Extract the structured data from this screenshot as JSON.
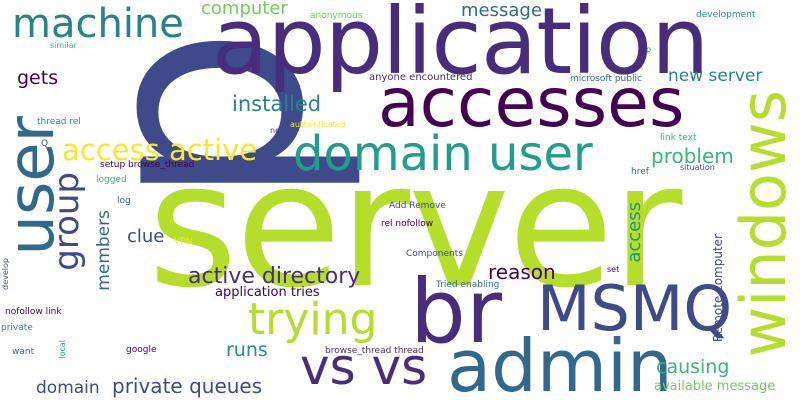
{
  "words": {
    "server": "server",
    "p": "p",
    "application": "application",
    "accesses": "accesses",
    "user": "user",
    "windows": "windows",
    "br": "br",
    "msmq": "MSMQ",
    "admin": "admin",
    "vs_vs": "vs vs",
    "domain_user": "domain user",
    "machine": "machine",
    "trying": "trying",
    "group": "group",
    "access_active": "access active",
    "active_directory": "active directory",
    "private_queues": "private queues",
    "installed": "installed",
    "problem": "problem",
    "new_server": "new server",
    "reason": "reason",
    "computer": "computer",
    "message": "message",
    "gets": "gets",
    "clue": "clue",
    "members": "members",
    "runs": "runs",
    "causing": "causing",
    "access": "access",
    "domain": "domain",
    "available_message": "available message",
    "application_tries": "application tries",
    "remote_computer": "Remote computer",
    "anyone_encountered": "anyone encountered",
    "microsoft_public": "microsoft public",
    "anonymous": "anonymous",
    "development": "development",
    "similar": "similar",
    "p_small": "p",
    "thread_rel": "thread rel",
    "need": "need",
    "authenticated": "authenticated",
    "link_text": "link text",
    "q": "Q",
    "setup_browse_thread": "setup browse_thread",
    "situation": "situation",
    "href": "href",
    "logged": "logged",
    "log": "log",
    "add_remove": "Add Remove",
    "rel_nofollow": "rel nofollow",
    "vpn": "VPN",
    "components": "Components",
    "develop": "develop",
    "tried_enabling": "Tried enabling",
    "set": "set",
    "nofollow_link": "nofollow link",
    "private": "private",
    "local": "local",
    "want": "want",
    "google": "google",
    "browse_thread_thread": "browse_thread thread"
  },
  "colors": {
    "lime": "#b5de2b",
    "indigo": "#3e4a89",
    "purple": "#472d7b",
    "dark_purple": "#440154",
    "teal": "#21918c",
    "blue": "#31688e",
    "green": "#35b779",
    "light_green": "#6ece58",
    "yellow": "#fde725",
    "aqua": "#1f9e89",
    "steel": "#26828e"
  }
}
